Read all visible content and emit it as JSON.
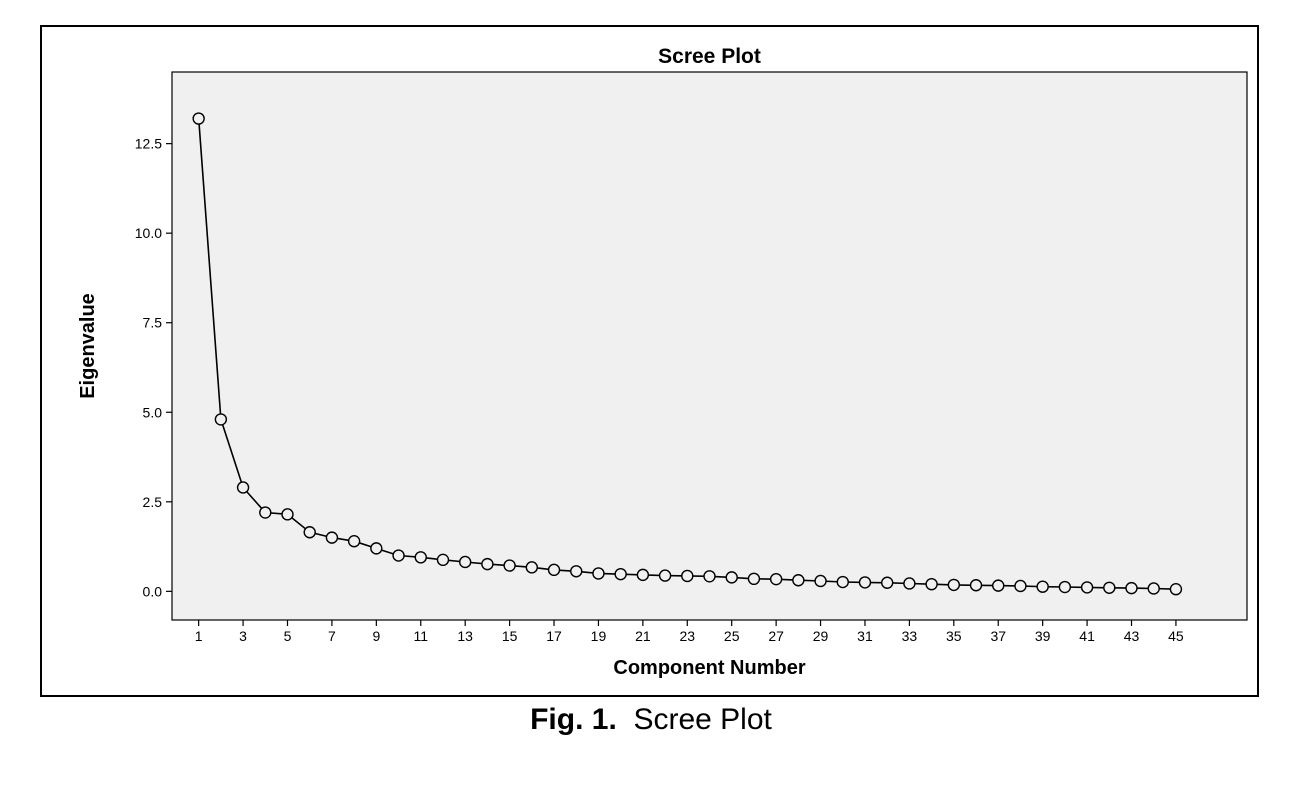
{
  "caption": {
    "label": "Fig. 1.",
    "text": "Scree Plot"
  },
  "colors": {
    "plot_background": "#f0f0f0",
    "line": "#000000",
    "marker_fill": "#f0f0f0"
  },
  "chart_data": {
    "type": "line",
    "title": "Scree Plot",
    "xlabel": "Component Number",
    "ylabel": "Eigenvalue",
    "xlim": [
      -0.2,
      48.2
    ],
    "ylim": [
      -0.8,
      14.5
    ],
    "x_ticks": [
      1,
      3,
      5,
      7,
      9,
      11,
      13,
      15,
      17,
      19,
      21,
      23,
      25,
      27,
      29,
      31,
      33,
      35,
      37,
      39,
      41,
      43,
      45
    ],
    "y_ticks": [
      0.0,
      2.5,
      5.0,
      7.5,
      10.0,
      12.5
    ],
    "y_tick_labels": [
      "0.0",
      "2.5",
      "5.0",
      "7.5",
      "10.0",
      "12.5"
    ],
    "grid": false,
    "legend": "none",
    "marker": "open-circle",
    "series": [
      {
        "x": [
          1,
          2,
          3,
          4,
          5,
          6,
          7,
          8,
          9,
          10,
          11,
          12,
          13,
          14,
          15,
          16,
          17,
          18,
          19,
          20,
          21,
          22,
          23,
          24,
          25,
          26,
          27,
          28,
          29,
          30,
          31,
          32,
          33,
          34,
          35,
          36,
          37,
          38,
          39,
          40,
          41,
          42,
          43,
          44,
          45
        ],
        "values": [
          13.2,
          4.8,
          2.9,
          2.2,
          2.15,
          1.65,
          1.5,
          1.4,
          1.2,
          1.0,
          0.95,
          0.88,
          0.82,
          0.76,
          0.72,
          0.67,
          0.6,
          0.56,
          0.5,
          0.48,
          0.46,
          0.44,
          0.43,
          0.42,
          0.39,
          0.35,
          0.34,
          0.31,
          0.29,
          0.26,
          0.25,
          0.24,
          0.22,
          0.2,
          0.18,
          0.17,
          0.16,
          0.15,
          0.13,
          0.12,
          0.11,
          0.1,
          0.09,
          0.08,
          0.06
        ]
      }
    ]
  }
}
